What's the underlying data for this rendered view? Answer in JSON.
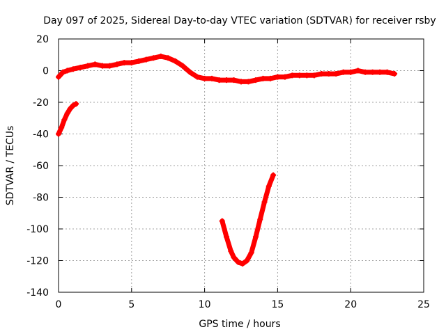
{
  "chart_data": {
    "type": "line",
    "title": "Day 097 of 2025, Sidereal Day-to-day VTEC variation (SDTVAR) for receiver rsby",
    "xlabel": "GPS time / hours",
    "ylabel": "SDTVAR / TECUs",
    "xlim": [
      0,
      25
    ],
    "ylim": [
      -140,
      20
    ],
    "xticks": [
      0,
      5,
      10,
      15,
      20,
      25
    ],
    "yticks": [
      20,
      0,
      -20,
      -40,
      -60,
      -80,
      -100,
      -120,
      -140
    ],
    "grid": true,
    "series": [
      {
        "name": "early segment",
        "color": "#ff0000",
        "x": [
          0.0,
          0.2,
          0.4,
          0.6,
          0.8,
          1.0,
          1.2
        ],
        "y": [
          -40,
          -36,
          -31,
          -27,
          -24,
          -22,
          -21
        ]
      },
      {
        "name": "main segment",
        "color": "#ff0000",
        "x": [
          0.0,
          0.3,
          0.6,
          1.0,
          1.5,
          2.0,
          2.5,
          3.0,
          3.5,
          4.0,
          4.5,
          5.0,
          5.5,
          6.0,
          6.5,
          7.0,
          7.5,
          8.0,
          8.5,
          9.0,
          9.5,
          10.0,
          10.5,
          11.0,
          11.5,
          12.0,
          12.5,
          13.0,
          13.5,
          14.0,
          14.5,
          15.0,
          15.5,
          16.0,
          16.5,
          17.0,
          17.5,
          18.0,
          18.5,
          19.0,
          19.5,
          20.0,
          20.5,
          21.0,
          21.5,
          22.0,
          22.5,
          23.0
        ],
        "y": [
          -4,
          -1,
          0,
          1,
          2,
          3,
          4,
          3,
          3,
          4,
          5,
          5,
          6,
          7,
          8,
          9,
          8,
          6,
          3,
          -1,
          -4,
          -5,
          -5,
          -6,
          -6,
          -6,
          -7,
          -7,
          -6,
          -5,
          -5,
          -4,
          -4,
          -3,
          -3,
          -3,
          -3,
          -2,
          -2,
          -2,
          -1,
          -1,
          0,
          -1,
          -1,
          -1,
          -1,
          -2
        ]
      },
      {
        "name": "late segment",
        "color": "#ff0000",
        "x": [
          11.2,
          11.5,
          11.8,
          12.0,
          12.3,
          12.6,
          12.9,
          13.2,
          13.5,
          13.8,
          14.1,
          14.4,
          14.7
        ],
        "y": [
          -95,
          -105,
          -114,
          -118,
          -121,
          -122,
          -120,
          -115,
          -105,
          -94,
          -83,
          -73,
          -66
        ]
      }
    ]
  }
}
